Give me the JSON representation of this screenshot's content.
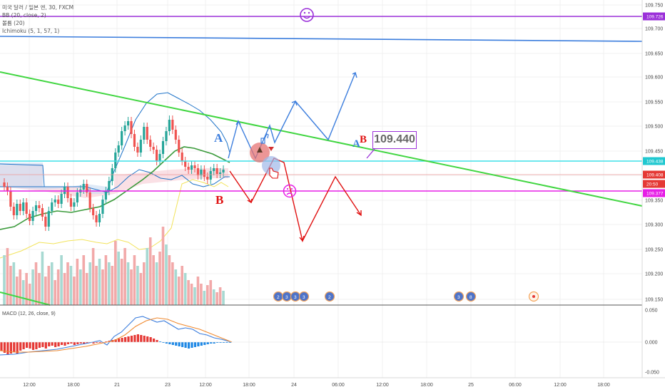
{
  "chart": {
    "legend": {
      "title": "미국 달러 / 일본 엔, 30, FXCM",
      "bb": "BB (20, close, 2)",
      "volume": "볼륨 (20)",
      "ichimoku": "Ichimoku (5, 1, 57, 1)"
    },
    "macd_label": "MACD (12, 26, close, 9)",
    "callout_value": "109.440",
    "annotation_letters": [
      "A",
      "B",
      "A",
      "B"
    ],
    "price_axis_labels": [
      "109.750",
      "109.700",
      "109.650",
      "109.600",
      "109.550",
      "109.500",
      "109.450",
      "109.400",
      "109.350",
      "109.300",
      "109.250",
      "109.200",
      "109.150"
    ],
    "price_tags": [
      {
        "value": "109.726",
        "color": "#9b30d9"
      },
      {
        "value": "109.438",
        "color": "#20c8d0"
      },
      {
        "value": "109.408",
        "color": "#e53935"
      },
      {
        "value": "20:50",
        "color": "#e53935"
      },
      {
        "value": "109.377",
        "color": "#e61ee6"
      }
    ],
    "macd_axis_labels": [
      "0.050",
      "0.000",
      "-0.050"
    ],
    "time_labels": [
      "12:00",
      "18:00",
      "21",
      "23",
      "12:00",
      "18:00",
      "24",
      "06:00",
      "12:00",
      "18:00",
      "25",
      "06:00",
      "12:00",
      "18:00"
    ],
    "event_badges": [
      "2",
      "3",
      "3",
      "3",
      "2",
      "3",
      "8"
    ],
    "colors": {
      "up": "#26a69a",
      "down": "#ef5350",
      "purple_line": "#9b30d9",
      "blue_line": "#3b7ddd",
      "cyan_line": "#3fe0e8",
      "magenta_line": "#e61ee6",
      "green_line": "#41d641",
      "arrow_blue": "#3b7ddd",
      "arrow_red": "#e01010"
    },
    "icons": [
      "smiley-icon",
      "sad-face-icon",
      "thumbs-up-icon",
      "pointer-hand-icon",
      "flag-icon"
    ]
  }
}
